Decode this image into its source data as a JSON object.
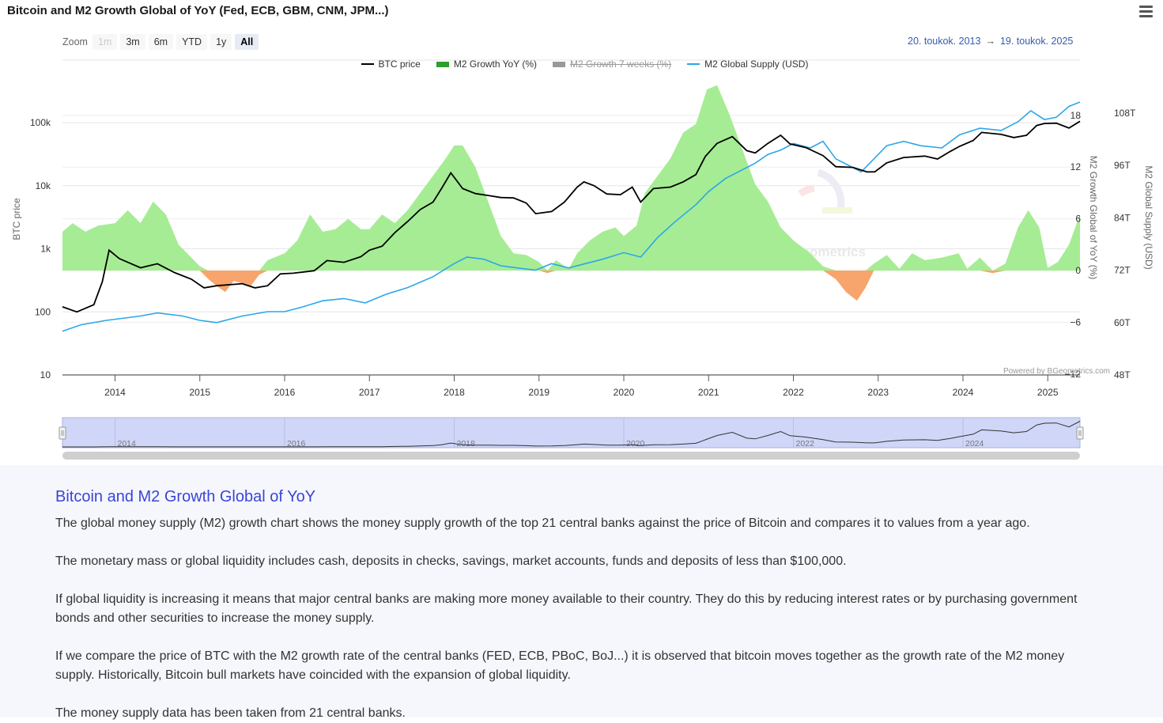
{
  "header": {
    "title": "Bitcoin and M2 Growth Global of YoY (Fed, ECB, GBM, CNM, JPM...)",
    "menu_icon": "hamburger-menu-icon"
  },
  "zoom": {
    "label": "Zoom",
    "buttons": [
      {
        "label": "1m",
        "state": "disabled"
      },
      {
        "label": "3m",
        "state": "normal"
      },
      {
        "label": "6m",
        "state": "normal"
      },
      {
        "label": "YTD",
        "state": "normal"
      },
      {
        "label": "1y",
        "state": "normal"
      },
      {
        "label": "All",
        "state": "active"
      }
    ]
  },
  "range": {
    "from": "20. toukok. 2013",
    "arrow": "→",
    "to": "19. toukok. 2025"
  },
  "legend": [
    {
      "label": "BTC price",
      "color": "#000000",
      "hidden": false
    },
    {
      "label": "M2 Growth YoY (%)",
      "color": "#2e9e2e",
      "hidden": false
    },
    {
      "label": "M2 Growth 7 weeks (%)",
      "color": "#999999",
      "hidden": true
    },
    {
      "label": "M2 Global Supply (USD)",
      "color": "#2ca7e8",
      "hidden": false
    }
  ],
  "chart_data": {
    "type": "line",
    "title": "Bitcoin and M2 Growth Global of YoY (Fed, ECB, GBM, CNM, JPM...)",
    "x_range": [
      2013.38,
      2025.38
    ],
    "x_ticks": [
      "2014",
      "2015",
      "2016",
      "2017",
      "2018",
      "2019",
      "2020",
      "2021",
      "2022",
      "2023",
      "2024",
      "2025"
    ],
    "axes": {
      "btc": {
        "label": "BTC price",
        "scale": "log",
        "ticks": [
          "10",
          "100",
          "1k",
          "10k",
          "100k"
        ],
        "range": [
          10,
          350000
        ]
      },
      "growth": {
        "label": "M2 Growth Global of YoY (%)",
        "ticks": [
          "−12",
          "−6",
          "0",
          "6",
          "12",
          "18"
        ],
        "range": [
          -12,
          20
        ]
      },
      "supply": {
        "label": "M2 Global Supply (USD)",
        "ticks": [
          "48T",
          "60T",
          "72T",
          "84T",
          "96T",
          "108T"
        ],
        "range": [
          48,
          110
        ]
      }
    },
    "series": [
      {
        "name": "BTC price",
        "axis": "btc",
        "color": "#000000",
        "points": [
          [
            2013.38,
            120
          ],
          [
            2013.55,
            100
          ],
          [
            2013.75,
            130
          ],
          [
            2013.85,
            300
          ],
          [
            2013.93,
            950
          ],
          [
            2014.05,
            700
          ],
          [
            2014.3,
            500
          ],
          [
            2014.5,
            580
          ],
          [
            2014.7,
            420
          ],
          [
            2014.9,
            330
          ],
          [
            2015.05,
            240
          ],
          [
            2015.2,
            260
          ],
          [
            2015.5,
            280
          ],
          [
            2015.65,
            240
          ],
          [
            2015.8,
            260
          ],
          [
            2015.95,
            400
          ],
          [
            2016.1,
            410
          ],
          [
            2016.35,
            450
          ],
          [
            2016.5,
            650
          ],
          [
            2016.7,
            610
          ],
          [
            2016.9,
            750
          ],
          [
            2017.0,
            950
          ],
          [
            2017.15,
            1100
          ],
          [
            2017.3,
            1800
          ],
          [
            2017.45,
            2700
          ],
          [
            2017.6,
            4200
          ],
          [
            2017.75,
            5500
          ],
          [
            2017.85,
            9000
          ],
          [
            2017.96,
            16000
          ],
          [
            2018.1,
            9000
          ],
          [
            2018.25,
            7500
          ],
          [
            2018.4,
            7000
          ],
          [
            2018.55,
            6500
          ],
          [
            2018.7,
            6400
          ],
          [
            2018.85,
            5300
          ],
          [
            2018.96,
            3600
          ],
          [
            2019.15,
            3900
          ],
          [
            2019.3,
            5500
          ],
          [
            2019.45,
            9500
          ],
          [
            2019.53,
            11500
          ],
          [
            2019.65,
            10000
          ],
          [
            2019.8,
            7400
          ],
          [
            2019.96,
            7200
          ],
          [
            2020.1,
            9500
          ],
          [
            2020.2,
            5500
          ],
          [
            2020.35,
            9000
          ],
          [
            2020.55,
            9500
          ],
          [
            2020.7,
            11500
          ],
          [
            2020.85,
            15000
          ],
          [
            2020.96,
            29000
          ],
          [
            2021.1,
            47000
          ],
          [
            2021.28,
            60000
          ],
          [
            2021.45,
            36000
          ],
          [
            2021.55,
            33000
          ],
          [
            2021.7,
            47000
          ],
          [
            2021.85,
            63000
          ],
          [
            2021.96,
            46000
          ],
          [
            2022.15,
            40000
          ],
          [
            2022.35,
            30000
          ],
          [
            2022.5,
            20000
          ],
          [
            2022.7,
            19500
          ],
          [
            2022.87,
            16500
          ],
          [
            2022.96,
            16600
          ],
          [
            2023.1,
            23000
          ],
          [
            2023.3,
            28000
          ],
          [
            2023.55,
            29500
          ],
          [
            2023.7,
            26500
          ],
          [
            2023.85,
            35000
          ],
          [
            2023.96,
            42000
          ],
          [
            2024.12,
            52000
          ],
          [
            2024.22,
            70000
          ],
          [
            2024.45,
            65000
          ],
          [
            2024.6,
            58000
          ],
          [
            2024.75,
            63000
          ],
          [
            2024.87,
            90000
          ],
          [
            2024.96,
            97000
          ],
          [
            2025.1,
            98000
          ],
          [
            2025.25,
            82000
          ],
          [
            2025.38,
            105000
          ]
        ]
      },
      {
        "name": "M2 Growth YoY (%)",
        "axis": "growth",
        "color": "#2e9e2e",
        "fill_positive": "#a6ec94",
        "fill_negative": "#f7a56c",
        "points": [
          [
            2013.38,
            4.5
          ],
          [
            2013.5,
            5.5
          ],
          [
            2013.65,
            4.5
          ],
          [
            2013.8,
            5.2
          ],
          [
            2014.0,
            5.5
          ],
          [
            2014.15,
            7.0
          ],
          [
            2014.3,
            5.5
          ],
          [
            2014.45,
            8.0
          ],
          [
            2014.6,
            6.5
          ],
          [
            2014.75,
            3.0
          ],
          [
            2014.9,
            1.5
          ],
          [
            2015.0,
            0.5
          ],
          [
            2015.1,
            -1.0
          ],
          [
            2015.2,
            -1.8
          ],
          [
            2015.3,
            -2.5
          ],
          [
            2015.4,
            -1.2
          ],
          [
            2015.5,
            -1.5
          ],
          [
            2015.6,
            -1.8
          ],
          [
            2015.7,
            -0.5
          ],
          [
            2015.8,
            1.2
          ],
          [
            2016.0,
            2.0
          ],
          [
            2016.15,
            3.5
          ],
          [
            2016.3,
            6.5
          ],
          [
            2016.45,
            4.5
          ],
          [
            2016.6,
            4.8
          ],
          [
            2016.75,
            6.0
          ],
          [
            2016.9,
            4.8
          ],
          [
            2017.0,
            4.8
          ],
          [
            2017.15,
            6.5
          ],
          [
            2017.3,
            5.5
          ],
          [
            2017.45,
            7.0
          ],
          [
            2017.6,
            9.0
          ],
          [
            2017.75,
            11.0
          ],
          [
            2017.9,
            13.0
          ],
          [
            2018.0,
            14.5
          ],
          [
            2018.1,
            14.5
          ],
          [
            2018.25,
            12.0
          ],
          [
            2018.4,
            8.0
          ],
          [
            2018.55,
            4.0
          ],
          [
            2018.7,
            2.0
          ],
          [
            2018.85,
            1.8
          ],
          [
            2019.0,
            1.0
          ],
          [
            2019.1,
            -0.3
          ],
          [
            2019.2,
            1.2
          ],
          [
            2019.35,
            0.2
          ],
          [
            2019.45,
            2.0
          ],
          [
            2019.6,
            3.5
          ],
          [
            2019.75,
            4.5
          ],
          [
            2019.9,
            5.0
          ],
          [
            2020.0,
            4.0
          ],
          [
            2020.15,
            5.2
          ],
          [
            2020.25,
            9.0
          ],
          [
            2020.4,
            11.0
          ],
          [
            2020.55,
            13.0
          ],
          [
            2020.7,
            16.0
          ],
          [
            2020.85,
            17.0
          ],
          [
            2020.98,
            21.0
          ],
          [
            2021.1,
            21.5
          ],
          [
            2021.25,
            18.0
          ],
          [
            2021.4,
            14.0
          ],
          [
            2021.55,
            10.0
          ],
          [
            2021.7,
            8.0
          ],
          [
            2021.85,
            5.0
          ],
          [
            2022.0,
            3.5
          ],
          [
            2022.2,
            2.0
          ],
          [
            2022.35,
            0.5
          ],
          [
            2022.5,
            -1.0
          ],
          [
            2022.62,
            -2.5
          ],
          [
            2022.75,
            -3.5
          ],
          [
            2022.85,
            -2.0
          ],
          [
            2022.95,
            0.8
          ],
          [
            2023.1,
            1.8
          ],
          [
            2023.25,
            0.2
          ],
          [
            2023.4,
            2.0
          ],
          [
            2023.55,
            1.2
          ],
          [
            2023.75,
            1.5
          ],
          [
            2023.95,
            2.0
          ],
          [
            2024.05,
            0.2
          ],
          [
            2024.2,
            1.5
          ],
          [
            2024.35,
            -0.3
          ],
          [
            2024.5,
            0.8
          ],
          [
            2024.65,
            5.0
          ],
          [
            2024.77,
            7.0
          ],
          [
            2024.9,
            5.0
          ],
          [
            2025.0,
            0.3
          ],
          [
            2025.12,
            1.0
          ],
          [
            2025.25,
            3.0
          ],
          [
            2025.38,
            6.5
          ]
        ]
      },
      {
        "name": "M2 Global Supply (USD)",
        "axis": "supply",
        "color": "#2ca7e8",
        "points": [
          [
            2013.38,
            58.0
          ],
          [
            2013.6,
            59.5
          ],
          [
            2013.9,
            60.5
          ],
          [
            2014.3,
            61.5
          ],
          [
            2014.5,
            62.2
          ],
          [
            2014.8,
            61.5
          ],
          [
            2015.0,
            60.5
          ],
          [
            2015.2,
            60.0
          ],
          [
            2015.5,
            61.5
          ],
          [
            2015.8,
            62.5
          ],
          [
            2016.0,
            62.5
          ],
          [
            2016.2,
            63.5
          ],
          [
            2016.45,
            65.0
          ],
          [
            2016.7,
            65.5
          ],
          [
            2016.95,
            64.5
          ],
          [
            2017.2,
            66.5
          ],
          [
            2017.45,
            68.0
          ],
          [
            2017.75,
            70.5
          ],
          [
            2018.0,
            73.5
          ],
          [
            2018.15,
            75.0
          ],
          [
            2018.35,
            74.5
          ],
          [
            2018.55,
            73.0
          ],
          [
            2018.75,
            72.5
          ],
          [
            2018.96,
            72.0
          ],
          [
            2019.15,
            73.5
          ],
          [
            2019.35,
            72.5
          ],
          [
            2019.55,
            73.5
          ],
          [
            2019.75,
            74.5
          ],
          [
            2020.0,
            76.0
          ],
          [
            2020.2,
            75.0
          ],
          [
            2020.4,
            79.5
          ],
          [
            2020.6,
            83.0
          ],
          [
            2020.85,
            87.0
          ],
          [
            2021.0,
            90.0
          ],
          [
            2021.2,
            93.0
          ],
          [
            2021.4,
            95.0
          ],
          [
            2021.55,
            96.5
          ],
          [
            2021.7,
            98.5
          ],
          [
            2021.85,
            99.5
          ],
          [
            2022.0,
            101.0
          ],
          [
            2022.2,
            100.0
          ],
          [
            2022.35,
            101.5
          ],
          [
            2022.5,
            97.5
          ],
          [
            2022.65,
            96.0
          ],
          [
            2022.8,
            94.5
          ],
          [
            2022.95,
            97.5
          ],
          [
            2023.1,
            100.5
          ],
          [
            2023.3,
            101.5
          ],
          [
            2023.5,
            100.5
          ],
          [
            2023.75,
            100.0
          ],
          [
            2023.96,
            103.0
          ],
          [
            2024.2,
            104.5
          ],
          [
            2024.45,
            104.0
          ],
          [
            2024.65,
            106.0
          ],
          [
            2024.8,
            108.5
          ],
          [
            2024.96,
            106.5
          ],
          [
            2025.1,
            107.0
          ],
          [
            2025.25,
            109.5
          ],
          [
            2025.38,
            110.5
          ]
        ]
      }
    ]
  },
  "watermark": "BGeometrics",
  "credit": "Powered by BGeometrics.com",
  "navigator": {
    "labels": [
      "2014",
      "2016",
      "2018",
      "2020",
      "2022",
      "2024"
    ]
  },
  "info": {
    "heading": "Bitcoin and M2 Growth Global of YoY",
    "paragraphs": [
      "The global money supply (M2) growth chart shows the money supply growth of the top 21 central banks against the price of Bitcoin and compares it to values from a year ago.",
      "The monetary mass or global liquidity includes cash, deposits in checks, savings, market accounts, funds and deposits of less than $100,000.",
      "If global liquidity is increasing it means that major central banks are making more money available to their country. They do this by reducing interest rates or by purchasing government bonds and other securities to increase the money supply.",
      "If we compare the price of BTC with the M2 growth rate of the central banks (FED, ECB, PBoC, BoJ...) it is observed that bitcoin moves together as the growth rate of the M2 money supply. Historically, Bitcoin bull markets have coincided with the expansion of global liquidity.",
      "The money supply data has been taken from 21 central banks."
    ]
  }
}
